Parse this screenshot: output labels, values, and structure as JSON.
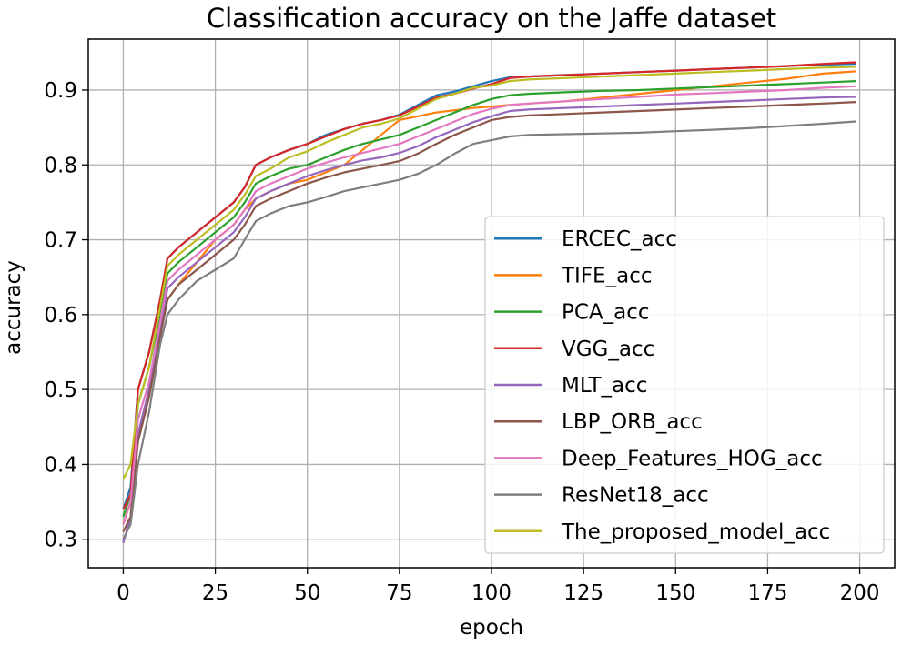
{
  "chart_data": {
    "type": "line",
    "title": "Classification accuracy on the Jaffe dataset",
    "xlabel": "epoch",
    "ylabel": "accuracy",
    "xlim": [
      -9.5,
      209.5
    ],
    "ylim": [
      0.262,
      0.968
    ],
    "xticks": [
      0,
      25,
      50,
      75,
      100,
      125,
      150,
      175,
      200
    ],
    "yticks": [
      0.3,
      0.4,
      0.5,
      0.6,
      0.7,
      0.8,
      0.9
    ],
    "ytick_labels": [
      "0.3",
      "0.4",
      "0.5",
      "0.6",
      "0.7",
      "0.8",
      "0.9"
    ],
    "grid": true,
    "legend_position": "lower-right",
    "series": [
      {
        "name": "ERCEC_acc",
        "color": "#1f77b4",
        "x": [
          0,
          2,
          4,
          7,
          10,
          12,
          15,
          20,
          25,
          30,
          33,
          36,
          40,
          45,
          50,
          55,
          60,
          65,
          70,
          75,
          80,
          85,
          90,
          95,
          100,
          105,
          110,
          120,
          130,
          140,
          150,
          160,
          170,
          180,
          190,
          199
        ],
        "y": [
          0.34,
          0.37,
          0.5,
          0.55,
          0.62,
          0.675,
          0.69,
          0.71,
          0.73,
          0.75,
          0.77,
          0.8,
          0.81,
          0.82,
          0.828,
          0.84,
          0.848,
          0.855,
          0.86,
          0.867,
          0.88,
          0.893,
          0.898,
          0.905,
          0.912,
          0.917,
          0.918,
          0.92,
          0.922,
          0.924,
          0.926,
          0.928,
          0.93,
          0.932,
          0.934,
          0.935
        ]
      },
      {
        "name": "TIFE_acc",
        "color": "#ff7f0e",
        "x": [
          0,
          2,
          4,
          7,
          10,
          12,
          15,
          20,
          25,
          30,
          33,
          36,
          40,
          45,
          50,
          55,
          60,
          65,
          70,
          75,
          80,
          85,
          90,
          95,
          100,
          105,
          110,
          120,
          130,
          140,
          150,
          160,
          170,
          180,
          190,
          199
        ],
        "y": [
          0.32,
          0.35,
          0.44,
          0.5,
          0.58,
          0.62,
          0.64,
          0.67,
          0.7,
          0.72,
          0.74,
          0.755,
          0.765,
          0.775,
          0.78,
          0.79,
          0.8,
          0.82,
          0.84,
          0.86,
          0.865,
          0.87,
          0.873,
          0.876,
          0.878,
          0.88,
          0.882,
          0.885,
          0.89,
          0.895,
          0.9,
          0.905,
          0.91,
          0.915,
          0.922,
          0.925
        ]
      },
      {
        "name": "PCA_acc",
        "color": "#2ca02c",
        "x": [
          0,
          2,
          4,
          7,
          10,
          12,
          15,
          20,
          25,
          30,
          33,
          36,
          40,
          45,
          50,
          55,
          60,
          65,
          70,
          75,
          80,
          85,
          90,
          95,
          100,
          105,
          110,
          120,
          130,
          140,
          150,
          160,
          170,
          180,
          190,
          199
        ],
        "y": [
          0.33,
          0.36,
          0.48,
          0.53,
          0.6,
          0.655,
          0.67,
          0.69,
          0.71,
          0.73,
          0.75,
          0.775,
          0.785,
          0.795,
          0.8,
          0.81,
          0.82,
          0.828,
          0.834,
          0.84,
          0.85,
          0.86,
          0.87,
          0.88,
          0.888,
          0.893,
          0.895,
          0.897,
          0.899,
          0.9,
          0.902,
          0.904,
          0.906,
          0.908,
          0.91,
          0.912
        ]
      },
      {
        "name": "VGG_acc",
        "color": "#d62728",
        "x": [
          0,
          2,
          4,
          7,
          10,
          12,
          15,
          20,
          25,
          30,
          33,
          36,
          40,
          45,
          50,
          55,
          60,
          65,
          70,
          75,
          80,
          85,
          90,
          95,
          100,
          105,
          110,
          120,
          130,
          140,
          150,
          160,
          170,
          180,
          190,
          199
        ],
        "y": [
          0.34,
          0.36,
          0.5,
          0.55,
          0.62,
          0.675,
          0.69,
          0.71,
          0.73,
          0.75,
          0.77,
          0.8,
          0.81,
          0.82,
          0.828,
          0.838,
          0.848,
          0.855,
          0.86,
          0.866,
          0.878,
          0.89,
          0.895,
          0.902,
          0.908,
          0.916,
          0.918,
          0.92,
          0.922,
          0.924,
          0.926,
          0.928,
          0.93,
          0.932,
          0.935,
          0.937
        ]
      },
      {
        "name": "MLT_acc",
        "color": "#9467bd",
        "x": [
          0,
          2,
          4,
          7,
          10,
          12,
          15,
          20,
          25,
          30,
          33,
          36,
          40,
          45,
          50,
          55,
          60,
          65,
          70,
          75,
          80,
          85,
          90,
          95,
          100,
          105,
          110,
          120,
          130,
          140,
          150,
          160,
          170,
          180,
          190,
          199
        ],
        "y": [
          0.295,
          0.33,
          0.44,
          0.5,
          0.58,
          0.635,
          0.65,
          0.67,
          0.69,
          0.71,
          0.73,
          0.755,
          0.765,
          0.775,
          0.785,
          0.793,
          0.8,
          0.806,
          0.81,
          0.816,
          0.825,
          0.837,
          0.847,
          0.857,
          0.865,
          0.872,
          0.874,
          0.876,
          0.878,
          0.88,
          0.882,
          0.884,
          0.886,
          0.888,
          0.89,
          0.891
        ]
      },
      {
        "name": "LBP_ORB_acc",
        "color": "#8c564b",
        "x": [
          0,
          2,
          4,
          7,
          10,
          12,
          15,
          20,
          25,
          30,
          33,
          36,
          40,
          45,
          50,
          55,
          60,
          65,
          70,
          75,
          80,
          85,
          90,
          95,
          100,
          105,
          110,
          120,
          130,
          140,
          150,
          160,
          170,
          180,
          190,
          199
        ],
        "y": [
          0.31,
          0.33,
          0.43,
          0.49,
          0.57,
          0.62,
          0.64,
          0.66,
          0.68,
          0.7,
          0.72,
          0.745,
          0.755,
          0.765,
          0.775,
          0.783,
          0.79,
          0.795,
          0.8,
          0.805,
          0.815,
          0.828,
          0.84,
          0.85,
          0.86,
          0.864,
          0.866,
          0.868,
          0.87,
          0.872,
          0.874,
          0.876,
          0.878,
          0.88,
          0.882,
          0.884
        ]
      },
      {
        "name": "Deep_Features_HOG_acc",
        "color": "#e377c2",
        "x": [
          0,
          2,
          4,
          7,
          10,
          12,
          15,
          20,
          25,
          30,
          33,
          36,
          40,
          45,
          50,
          55,
          60,
          65,
          70,
          75,
          80,
          85,
          90,
          95,
          100,
          105,
          110,
          120,
          130,
          140,
          150,
          160,
          170,
          180,
          190,
          199
        ],
        "y": [
          0.32,
          0.35,
          0.46,
          0.51,
          0.59,
          0.645,
          0.66,
          0.68,
          0.7,
          0.72,
          0.74,
          0.765,
          0.775,
          0.785,
          0.795,
          0.803,
          0.81,
          0.816,
          0.822,
          0.828,
          0.838,
          0.848,
          0.858,
          0.868,
          0.875,
          0.88,
          0.882,
          0.885,
          0.888,
          0.891,
          0.894,
          0.896,
          0.898,
          0.9,
          0.903,
          0.905
        ]
      },
      {
        "name": "ResNet18_acc",
        "color": "#7f7f7f",
        "x": [
          0,
          2,
          4,
          7,
          10,
          12,
          15,
          20,
          25,
          30,
          33,
          36,
          40,
          45,
          50,
          55,
          60,
          65,
          70,
          75,
          80,
          85,
          90,
          95,
          100,
          105,
          110,
          120,
          130,
          140,
          150,
          160,
          170,
          180,
          190,
          199
        ],
        "y": [
          0.3,
          0.32,
          0.4,
          0.47,
          0.56,
          0.6,
          0.62,
          0.645,
          0.66,
          0.675,
          0.7,
          0.725,
          0.735,
          0.745,
          0.75,
          0.757,
          0.765,
          0.77,
          0.775,
          0.78,
          0.788,
          0.8,
          0.815,
          0.828,
          0.833,
          0.838,
          0.84,
          0.841,
          0.842,
          0.843,
          0.845,
          0.847,
          0.849,
          0.852,
          0.855,
          0.858
        ]
      },
      {
        "name": "The_proposed_model_acc",
        "color": "#bcbd22",
        "x": [
          0,
          2,
          4,
          7,
          10,
          12,
          15,
          20,
          25,
          30,
          33,
          36,
          40,
          45,
          50,
          55,
          60,
          65,
          70,
          75,
          80,
          85,
          90,
          95,
          100,
          105,
          110,
          120,
          130,
          140,
          150,
          160,
          170,
          180,
          190,
          199
        ],
        "y": [
          0.38,
          0.4,
          0.48,
          0.53,
          0.61,
          0.665,
          0.68,
          0.7,
          0.72,
          0.74,
          0.76,
          0.785,
          0.795,
          0.81,
          0.818,
          0.83,
          0.84,
          0.85,
          0.855,
          0.862,
          0.875,
          0.888,
          0.895,
          0.903,
          0.906,
          0.912,
          0.914,
          0.916,
          0.918,
          0.92,
          0.922,
          0.924,
          0.926,
          0.928,
          0.93,
          0.931
        ]
      }
    ]
  }
}
